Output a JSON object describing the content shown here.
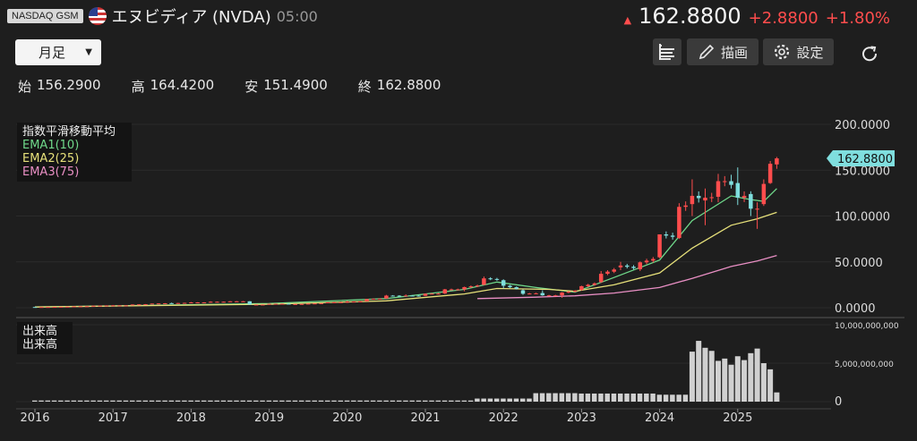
{
  "header": {
    "exchange": "NASDAQ GSM",
    "title": "エヌビディア (NVDA)",
    "time": "05:00",
    "price": "162.8800",
    "change": "+2.8800",
    "change_pct": "+1.80%"
  },
  "toolbar": {
    "period": "月足",
    "draw": "描画",
    "settings": "設定"
  },
  "ohlc": {
    "open_label": "始",
    "open": "156.2900",
    "high_label": "高",
    "high": "164.4200",
    "low_label": "安",
    "low": "151.4900",
    "close_label": "終",
    "close": "162.8800"
  },
  "legend": {
    "main_title": "指数平滑移動平均",
    "ema1": "EMA1(10)",
    "ema2": "EMA2(25)",
    "ema3": "EMA3(75)",
    "vol_title": "出来高",
    "vol_sub": "出来高"
  },
  "colors": {
    "up": "#ff4d4d",
    "down": "#7fdede",
    "ema1": "#6fd88a",
    "ema2": "#e6e07a",
    "ema3": "#e98fc4"
  },
  "chart_data": {
    "type": "candlestick",
    "x_start": "2016-01",
    "x_ticks": [
      "2016",
      "2017",
      "2018",
      "2019",
      "2020",
      "2021",
      "2022",
      "2023",
      "2024",
      "2025"
    ],
    "y_ticks": [
      "200.0000",
      "150.0000",
      "100.0000",
      "50.0000",
      "0.0000"
    ],
    "ylim": [
      0,
      200
    ],
    "last_price_label": "162.8800",
    "volume_ticks": [
      "10,000,000,000",
      "5,000,000,000",
      "0"
    ],
    "volume_lim": [
      0,
      10000000000
    ],
    "monthly": [
      [
        2016,
        1,
        0.8,
        0.82,
        0.72,
        0.74
      ],
      [
        2016,
        4,
        0.85,
        0.95,
        0.84,
        0.93
      ],
      [
        2016,
        7,
        1.3,
        1.5,
        1.28,
        1.45
      ],
      [
        2016,
        10,
        1.7,
        2.3,
        1.65,
        2.2
      ],
      [
        2017,
        1,
        2.6,
        3.0,
        2.4,
        2.6
      ],
      [
        2017,
        4,
        2.6,
        3.7,
        2.5,
        3.5
      ],
      [
        2017,
        7,
        4.0,
        4.6,
        3.8,
        4.5
      ],
      [
        2017,
        10,
        5.0,
        5.5,
        4.6,
        4.9
      ],
      [
        2018,
        1,
        5.5,
        6.2,
        5.0,
        5.8
      ],
      [
        2018,
        4,
        5.8,
        7.0,
        5.6,
        6.5
      ],
      [
        2018,
        7,
        6.5,
        7.2,
        6.3,
        7.0
      ],
      [
        2018,
        10,
        7.0,
        7.2,
        3.5,
        3.4
      ],
      [
        2019,
        1,
        3.5,
        4.5,
        3.2,
        4.3
      ],
      [
        2019,
        4,
        4.4,
        4.9,
        3.8,
        3.9
      ],
      [
        2019,
        7,
        4.2,
        4.6,
        3.9,
        4.5
      ],
      [
        2019,
        10,
        5.0,
        6.0,
        4.9,
        5.9
      ],
      [
        2020,
        1,
        6.0,
        7.8,
        5.2,
        6.5
      ],
      [
        2020,
        4,
        7.0,
        9.5,
        6.8,
        9.5
      ],
      [
        2020,
        7,
        10.0,
        14.0,
        9.8,
        13.2
      ],
      [
        2020,
        10,
        13.0,
        14.5,
        12.5,
        13.2
      ],
      [
        2021,
        1,
        13.0,
        15.5,
        12.8,
        15.3
      ],
      [
        2021,
        4,
        15.5,
        20.5,
        15.0,
        20.0
      ],
      [
        2021,
        7,
        20.0,
        23.0,
        18.0,
        22.5
      ],
      [
        2021,
        10,
        25.0,
        34.0,
        24.5,
        32.0
      ],
      [
        2022,
        1,
        30.0,
        31.0,
        21.0,
        24.0
      ],
      [
        2022,
        4,
        19.0,
        20.0,
        14.0,
        15.2
      ],
      [
        2022,
        7,
        16.0,
        19.0,
        13.0,
        13.5
      ],
      [
        2022,
        10,
        13.5,
        17.0,
        10.8,
        16.5
      ],
      [
        2023,
        1,
        19.5,
        24.0,
        18.5,
        23.5
      ],
      [
        2023,
        4,
        28.0,
        40.0,
        27.0,
        37.0
      ],
      [
        2023,
        7,
        44.0,
        50.0,
        41.0,
        46.0
      ],
      [
        2023,
        10,
        42.0,
        50.5,
        40.0,
        49.5
      ],
      [
        2024,
        1,
        55.0,
        80.0,
        54.0,
        80.0
      ],
      [
        2024,
        4,
        76.0,
        114.0,
        75.0,
        110.0
      ],
      [
        2024,
        6,
        113.0,
        140.0,
        100.0,
        122.0
      ],
      [
        2024,
        8,
        117.0,
        130.0,
        90.0,
        120.0
      ],
      [
        2024,
        10,
        121.0,
        146.0,
        115.0,
        138.0
      ],
      [
        2024,
        12,
        138.0,
        145.0,
        130.0,
        134.0
      ],
      [
        2025,
        1,
        136.0,
        153.0,
        112.0,
        120.0
      ],
      [
        2025,
        3,
        124.0,
        127.0,
        100.0,
        108.0
      ],
      [
        2025,
        4,
        108.0,
        115.0,
        86.0,
        108.0
      ],
      [
        2025,
        5,
        113.0,
        140.0,
        111.0,
        135.0
      ],
      [
        2025,
        6,
        136.0,
        160.0,
        135.0,
        157.0
      ],
      [
        2025,
        7,
        156.29,
        164.42,
        151.49,
        162.88
      ]
    ],
    "ema_keypoints": {
      "ema1": [
        [
          2016,
          1,
          0.75
        ],
        [
          2019,
          1,
          4.6
        ],
        [
          2020,
          7,
          10
        ],
        [
          2021,
          7,
          20
        ],
        [
          2021,
          12,
          28
        ],
        [
          2022,
          6,
          22
        ],
        [
          2022,
          12,
          17
        ],
        [
          2023,
          6,
          33
        ],
        [
          2024,
          1,
          52
        ],
        [
          2024,
          6,
          95
        ],
        [
          2024,
          12,
          122
        ],
        [
          2025,
          3,
          118
        ],
        [
          2025,
          5,
          116
        ],
        [
          2025,
          7,
          130
        ]
      ],
      "ema2": [
        [
          2016,
          1,
          0.75
        ],
        [
          2019,
          1,
          3.8
        ],
        [
          2020,
          7,
          7.5
        ],
        [
          2021,
          7,
          15
        ],
        [
          2021,
          12,
          21
        ],
        [
          2022,
          8,
          20
        ],
        [
          2022,
          12,
          18
        ],
        [
          2023,
          6,
          25
        ],
        [
          2024,
          1,
          38
        ],
        [
          2024,
          6,
          65
        ],
        [
          2024,
          12,
          90
        ],
        [
          2025,
          4,
          97
        ],
        [
          2025,
          7,
          104
        ]
      ],
      "ema3": [
        [
          2021,
          9,
          10
        ],
        [
          2022,
          6,
          11.5
        ],
        [
          2022,
          12,
          13
        ],
        [
          2023,
          6,
          16
        ],
        [
          2024,
          1,
          22
        ],
        [
          2024,
          6,
          32
        ],
        [
          2024,
          12,
          45
        ],
        [
          2025,
          4,
          51
        ],
        [
          2025,
          7,
          57
        ]
      ]
    },
    "volume_segments": [
      [
        2016,
        1,
        2021,
        8,
        150000000
      ],
      [
        2021,
        9,
        2022,
        5,
        400000000
      ],
      [
        2022,
        6,
        2022,
        12,
        1100000000
      ],
      [
        2023,
        1,
        2023,
        12,
        1050000000
      ],
      [
        2024,
        1,
        2024,
        5,
        900000000
      ]
    ],
    "volume_monthly": [
      [
        2024,
        6,
        6500000000
      ],
      [
        2024,
        7,
        7900000000
      ],
      [
        2024,
        8,
        7000000000
      ],
      [
        2024,
        9,
        6600000000
      ],
      [
        2024,
        10,
        5300000000
      ],
      [
        2024,
        11,
        5600000000
      ],
      [
        2024,
        12,
        4800000000
      ],
      [
        2025,
        1,
        5900000000
      ],
      [
        2025,
        2,
        5400000000
      ],
      [
        2025,
        3,
        6300000000
      ],
      [
        2025,
        4,
        6900000000
      ],
      [
        2025,
        5,
        5000000000
      ],
      [
        2025,
        6,
        4200000000
      ],
      [
        2025,
        7,
        1200000000
      ]
    ]
  }
}
